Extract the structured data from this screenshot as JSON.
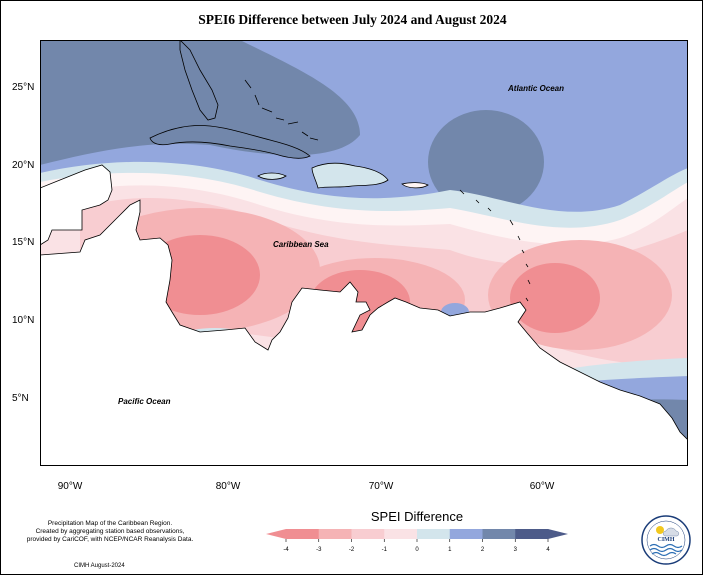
{
  "title": "SPEI6 Difference between July 2024 and August 2024",
  "latitude_labels": [
    "25°N",
    "20°N",
    "15°N",
    "10°N",
    "5°N"
  ],
  "longitude_labels": [
    "90°W",
    "80°W",
    "70°W",
    "60°W"
  ],
  "ocean_labels": {
    "atlantic": "Atlantic Ocean",
    "caribbean": "Caribbean Sea",
    "pacific": "Pacific Ocean"
  },
  "legend": {
    "title": "SPEI Difference",
    "ticks": [
      "-4",
      "-3",
      "-2",
      "-1",
      "0",
      "1",
      "2",
      "3",
      "4"
    ],
    "colors": [
      "#f08e92",
      "#f5b3b5",
      "#f8cdd1",
      "#fae2e5",
      "#fef4f4",
      "#d3e5ec",
      "#93a7dd",
      "#7287ab",
      "#4d5b89"
    ]
  },
  "credits": {
    "line1": "Precipitation Map of the Caribbean Region.",
    "line2": "Created by aggregating station based observations,",
    "line3": "provided by CariCOF, with NCEP/NCAR Reanalysis Data.",
    "date": "CIMH August-2024"
  },
  "logo_text": "CIMH"
}
